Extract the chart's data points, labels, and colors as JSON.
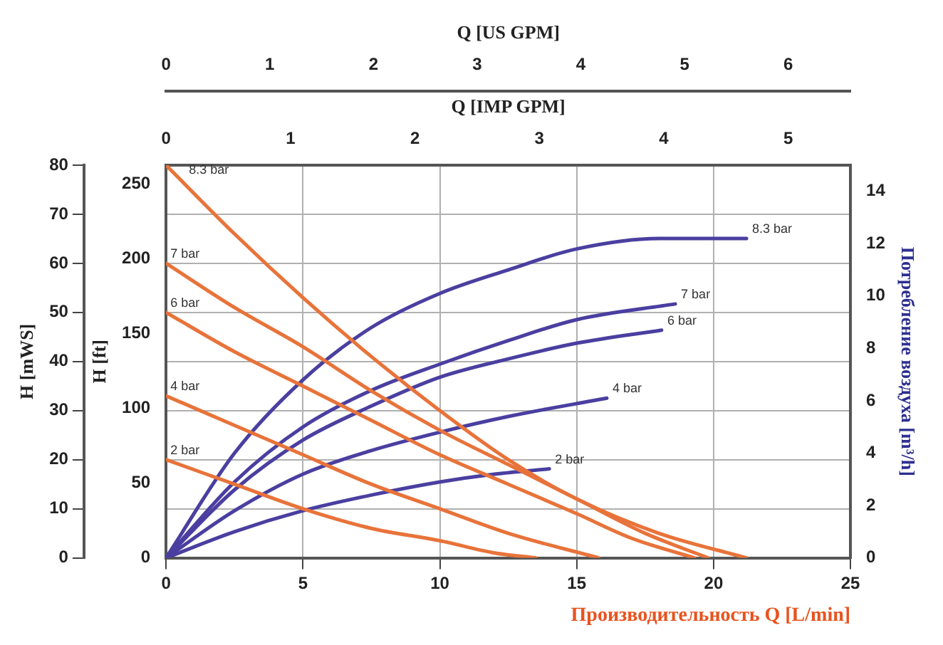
{
  "chart_data": {
    "type": "line",
    "xlabel": "Производительность Q [L/min]",
    "ylabel": "H [mWS]",
    "y2label": "Потребление воздуха [m³/h]",
    "y3label": "H [ft]",
    "x2label": "Q [US GPM]",
    "xlim": [
      0,
      25
    ],
    "xticks": [
      0,
      5,
      10,
      15,
      20,
      25
    ],
    "ylim": [
      0,
      80
    ],
    "yticks": [
      0,
      10,
      20,
      30,
      40,
      50,
      60,
      70,
      80
    ],
    "y2lim": [
      0,
      15
    ],
    "y2ticks": [
      0,
      2,
      4,
      6,
      8,
      10,
      12,
      14
    ],
    "y3lim": [
      0,
      262.5
    ],
    "y3ticks": [
      0,
      50,
      100,
      150,
      200,
      250
    ],
    "x2lim": [
      0,
      6.6
    ],
    "x2ticks": [
      0,
      1,
      2,
      3,
      4,
      5,
      6
    ],
    "annotations": [
      "Q [IMP GPM]",
      "0",
      "1",
      "2",
      "3",
      "4",
      "5"
    ],
    "grid": true,
    "legend": false,
    "marker": "none",
    "line_style": "solid",
    "series": [
      {
        "name": "8.3 bar",
        "color": "#e8733a",
        "x": [
          0,
          2.5,
          5,
          7.5,
          10,
          12.5,
          15,
          18,
          21.2
        ],
        "values": [
          80,
          66,
          53,
          41,
          30,
          20,
          12,
          5,
          0
        ]
      },
      {
        "name": "7 bar",
        "color": "#e8733a",
        "x": [
          0,
          2.5,
          5,
          7.5,
          10,
          12.5,
          15,
          17.5,
          19.8
        ],
        "values": [
          60,
          51,
          43,
          34,
          26,
          19,
          12,
          5,
          0
        ]
      },
      {
        "name": "6 bar",
        "color": "#e8733a",
        "x": [
          0,
          2.5,
          5,
          7.5,
          10,
          12.5,
          15,
          17,
          19.3
        ],
        "values": [
          50,
          42,
          35,
          28,
          21,
          15,
          9,
          4,
          0
        ]
      },
      {
        "name": "4 bar",
        "color": "#e8733a",
        "x": [
          0,
          2.5,
          5,
          7.5,
          10,
          12.5,
          15.8
        ],
        "values": [
          33,
          27,
          21,
          15,
          10,
          5,
          0
        ]
      },
      {
        "name": "2 bar",
        "color": "#e8733a",
        "x": [
          0,
          2.5,
          5,
          7.5,
          10,
          12,
          13.5
        ],
        "values": [
          20,
          15,
          10,
          6,
          3.5,
          1,
          0
        ]
      },
      {
        "name": "8.3 bar",
        "color": "#4a3fa0",
        "axis": "y2",
        "x": [
          0,
          2.5,
          5,
          7.5,
          10,
          12.5,
          15,
          18,
          21.2
        ],
        "values": [
          0,
          4,
          6.8,
          8.8,
          10.1,
          11,
          11.8,
          12.2,
          12.2
        ]
      },
      {
        "name": "7 bar",
        "color": "#4a3fa0",
        "axis": "y2",
        "x": [
          0,
          2.5,
          5,
          7.5,
          10,
          12.5,
          15,
          18.6
        ],
        "values": [
          0,
          2.9,
          5,
          6.4,
          7.4,
          8.3,
          9.1,
          9.7
        ]
      },
      {
        "name": "6 bar",
        "color": "#4a3fa0",
        "axis": "y2",
        "x": [
          0,
          2.5,
          5,
          7.5,
          10,
          12.5,
          15,
          18.1
        ],
        "values": [
          0,
          2.6,
          4.5,
          5.8,
          6.9,
          7.6,
          8.2,
          8.7
        ]
      },
      {
        "name": "4 bar",
        "color": "#4a3fa0",
        "axis": "y2",
        "x": [
          0,
          2.5,
          5,
          7.5,
          10,
          12.5,
          16.1
        ],
        "values": [
          0,
          1.8,
          3.2,
          4.1,
          4.8,
          5.4,
          6.1
        ]
      },
      {
        "name": "2 bar",
        "color": "#4a3fa0",
        "axis": "y2",
        "x": [
          0,
          2.5,
          5,
          7.5,
          10,
          12,
          14
        ],
        "values": [
          0,
          1,
          1.8,
          2.4,
          2.9,
          3.2,
          3.4
        ]
      }
    ]
  }
}
